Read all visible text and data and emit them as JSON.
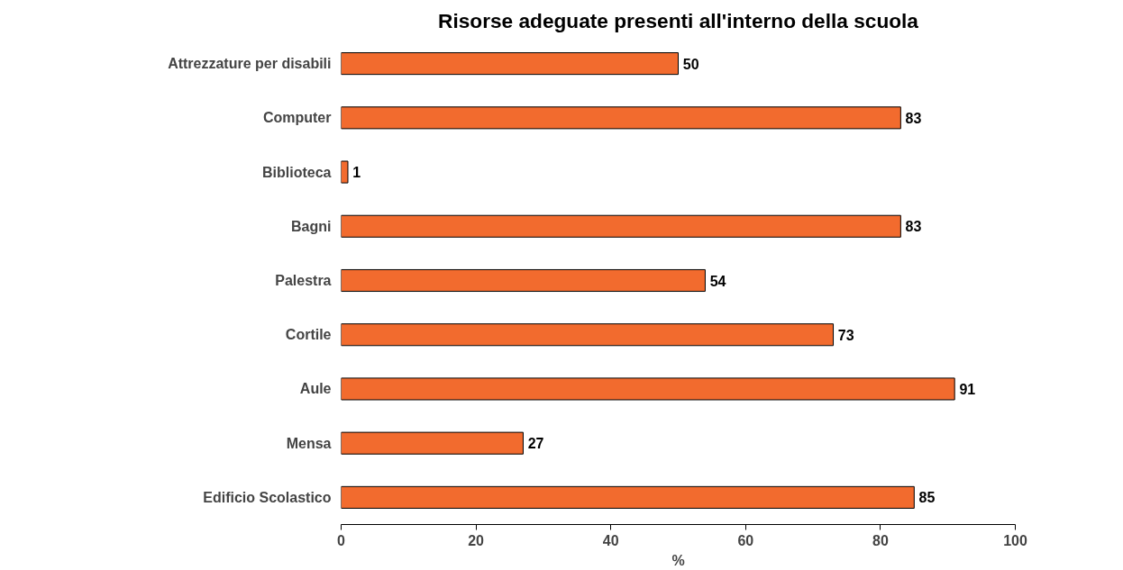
{
  "chart_data": {
    "type": "bar",
    "orientation": "horizontal",
    "title": "Risorse adeguate presenti all'interno della scuola",
    "xlabel": "%",
    "categories": [
      "Attrezzature per disabili",
      "Computer",
      "Biblioteca",
      "Bagni",
      "Palestra",
      "Cortile",
      "Aule",
      "Mensa",
      "Edificio Scolastico"
    ],
    "values": [
      50,
      83,
      1,
      83,
      54,
      73,
      91,
      27,
      85
    ],
    "color": "#f26b2e",
    "xlim": [
      0,
      100
    ],
    "xticks": [
      0,
      20,
      40,
      60,
      80,
      100
    ],
    "grid": false,
    "data_labels": true
  }
}
